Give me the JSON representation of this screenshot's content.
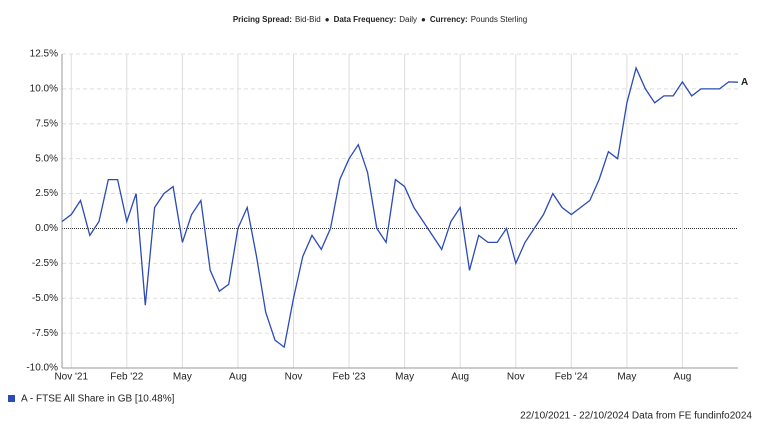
{
  "chart_data": {
    "type": "line",
    "subtitle_parts": [
      {
        "label": "Pricing Spread:",
        "value": "Bid-Bid"
      },
      {
        "label": "Data Frequency:",
        "value": "Daily"
      },
      {
        "label": "Currency:",
        "value": "Pounds Sterling"
      }
    ],
    "separator": "●",
    "categories": [
      null,
      "Nov '21",
      null,
      null,
      null,
      null,
      null,
      "Feb '22",
      null,
      null,
      null,
      null,
      null,
      "May",
      null,
      null,
      null,
      null,
      null,
      "Aug",
      null,
      null,
      null,
      null,
      null,
      "Nov",
      null,
      null,
      null,
      null,
      null,
      "Feb '23",
      null,
      null,
      null,
      null,
      null,
      "May",
      null,
      null,
      null,
      null,
      null,
      "Aug",
      null,
      null,
      null,
      null,
      null,
      "Nov",
      null,
      null,
      null,
      null,
      null,
      "Feb '24",
      null,
      null,
      null,
      null,
      null,
      "May",
      null,
      null,
      null,
      null,
      null,
      "Aug",
      null,
      null,
      null,
      null,
      null,
      null
    ],
    "series": [
      {
        "name": "A - FTSE All Share in GB [10.48%]",
        "end_label": "A",
        "color": "#2b4bb5",
        "values": [
          0.5,
          1.0,
          2.0,
          -0.5,
          0.5,
          3.5,
          3.5,
          0.5,
          2.5,
          -5.5,
          1.5,
          2.5,
          3.0,
          -1.0,
          1.0,
          2.0,
          -3.0,
          -4.5,
          -4.0,
          0.0,
          1.5,
          -2.0,
          -6.0,
          -8.0,
          -8.5,
          -5.0,
          -2.0,
          -0.5,
          -1.5,
          0.0,
          3.5,
          5.0,
          6.0,
          4.0,
          0.0,
          -1.0,
          3.5,
          3.0,
          1.5,
          0.5,
          -0.5,
          -1.5,
          0.5,
          1.5,
          -3.0,
          -0.5,
          -1.0,
          -1.0,
          0.0,
          -2.5,
          -1.0,
          0.0,
          1.0,
          2.5,
          1.5,
          1.0,
          1.5,
          2.0,
          3.5,
          5.5,
          5.0,
          9.0,
          11.5,
          10.0,
          9.0,
          9.5,
          9.5,
          10.5,
          9.5,
          10.0,
          10.0,
          10.0,
          10.5,
          10.48
        ]
      }
    ],
    "ylim": [
      -10,
      12.5
    ],
    "yticks": [
      {
        "value": -10,
        "label": "-10.0%"
      },
      {
        "value": -7.5,
        "label": "-7.5%"
      },
      {
        "value": -5,
        "label": "-5.0%"
      },
      {
        "value": -2.5,
        "label": "-2.5%"
      },
      {
        "value": 0,
        "label": "0.0%"
      },
      {
        "value": 2.5,
        "label": "2.5%"
      },
      {
        "value": 5,
        "label": "5.0%"
      },
      {
        "value": 7.5,
        "label": "7.5%"
      },
      {
        "value": 10,
        "label": "10.0%"
      },
      {
        "value": 12.5,
        "label": "12.5%"
      }
    ],
    "grid": true,
    "footer": "22/10/2021 - 22/10/2024 Data from FE fundinfo2024"
  }
}
